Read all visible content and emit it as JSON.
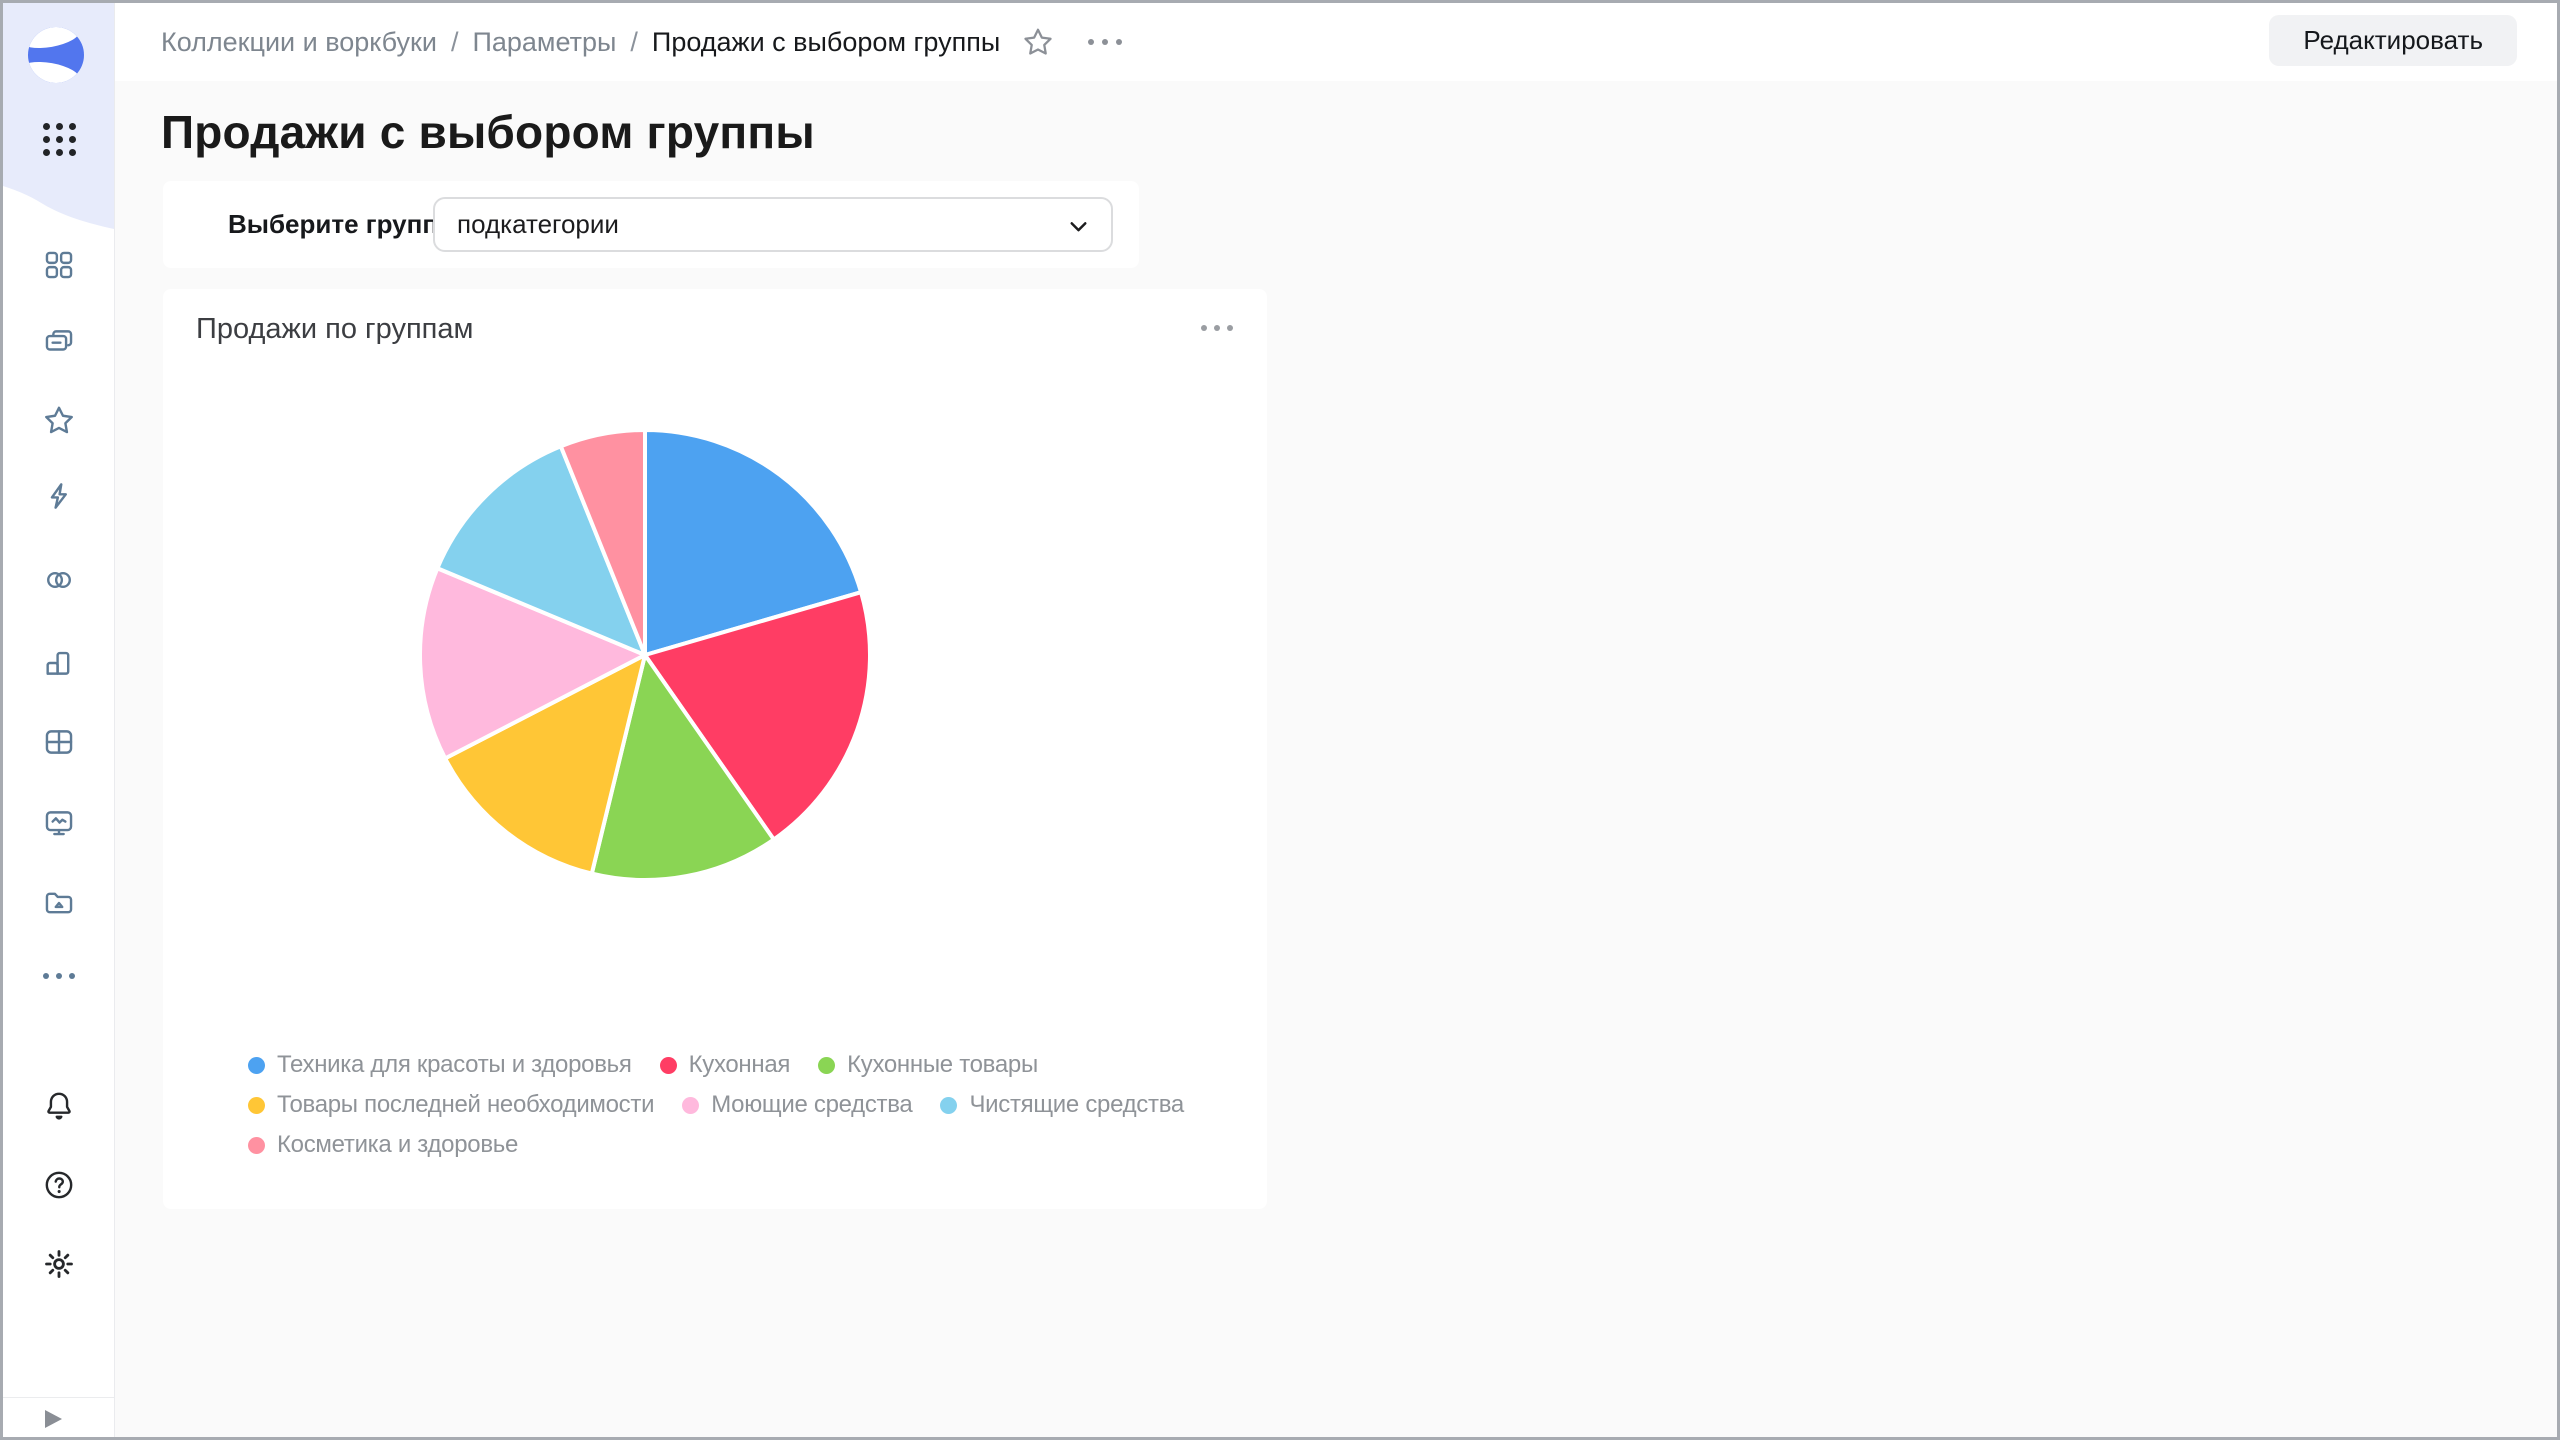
{
  "header": {
    "breadcrumbs": [
      "Коллекции и воркбуки",
      "Параметры",
      "Продажи с выбором группы"
    ],
    "separator": "/",
    "edit_label": "Редактировать"
  },
  "page": {
    "title": "Продажи с выбором группы"
  },
  "control": {
    "label": "Выберите группу",
    "value": "подкатегории"
  },
  "sidebar": {
    "logo_icon": "datalens-logo",
    "apps_icon": "apps-grid-icon",
    "nav_icons": [
      "grid-squares-icon",
      "folders-icon",
      "star-icon",
      "lightning-icon",
      "overlap-circles-icon",
      "bar-chart-icon",
      "table-icon",
      "monitor-pulse-icon",
      "folder-files-icon",
      "more-dots-icon"
    ],
    "footer_icons": [
      "bell-icon",
      "help-icon",
      "gear-icon",
      "expand-arrow-icon"
    ]
  },
  "colors": {
    "sidebar_top": "#E7EBFB",
    "logo_blue": "#5276EE",
    "nav_icon": "#5E7B96",
    "body_bg": "#FAFAFA",
    "card_bg": "#FFFFFF"
  },
  "chart_data": {
    "type": "pie",
    "title": "Продажи по группам",
    "categories": [
      "Техника для красоты и здоровья",
      "Кухонная",
      "Кухонные товары",
      "Товары последней необходимости",
      "Моющие средства",
      "Чистящие средства",
      "Косметика и здоровье"
    ],
    "values": [
      20.5,
      19.8,
      13.5,
      13.6,
      13.9,
      12.6,
      6.1
    ],
    "colors": [
      "#4DA2F1",
      "#FF3D64",
      "#8AD554",
      "#FFC636",
      "#FFB9DD",
      "#84D1EE",
      "#FF91A1"
    ],
    "legend_position": "bottom",
    "start_angle_deg": 0,
    "direction": "clockwise",
    "slice_border_color": "#FFFFFF"
  }
}
